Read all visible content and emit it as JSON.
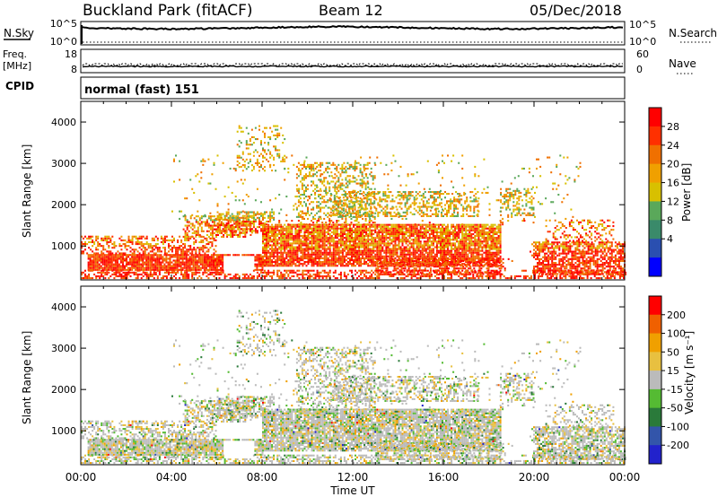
{
  "header": {
    "station": "Buckland Park (fitACF)",
    "beam": "Beam 12",
    "date": "05/Dec/2018"
  },
  "panels": {
    "nsky": {
      "label": "N.Sky",
      "left_ticks": [
        "10^5",
        "10^0"
      ],
      "right_ticks": [
        "10^5",
        "10^0"
      ],
      "right_label": "N.Search"
    },
    "freq": {
      "label_line1": "Freq.",
      "label_line2": "[MHz]",
      "left_ticks": [
        "18",
        "8"
      ],
      "right_ticks": [
        "60",
        "0"
      ],
      "right_label": "Nave"
    },
    "cpid": {
      "label": "CPID",
      "text": "normal (fast) 151"
    }
  },
  "colors": {
    "power_scale": [
      "#0000ff",
      "#2a4fb0",
      "#3a8a6a",
      "#5aa85a",
      "#d8c000",
      "#f0a000",
      "#f07000",
      "#ff3000",
      "#ff0000"
    ],
    "velocity_scale": [
      "#2222cc",
      "#3355aa",
      "#2a7a3a",
      "#55bb33",
      "#bbbbbb",
      "#e8c040",
      "#f0a000",
      "#f06000",
      "#ff0000"
    ]
  },
  "chart_data": [
    {
      "type": "heatmap",
      "name": "power",
      "ylabel": "Slant Range [km]",
      "yticks": [
        "1000",
        "2000",
        "3000",
        "4000"
      ],
      "xticks": [
        "00:00",
        "04:00",
        "08:00",
        "12:00",
        "16:00",
        "20:00",
        "00:00"
      ],
      "colorbar_label": "Power [dB]",
      "colorbar_ticks": [
        "4",
        "8",
        "12",
        "16",
        "20",
        "24",
        "28"
      ],
      "ylim": [
        180,
        4500
      ],
      "xlim": [
        0,
        24
      ]
    },
    {
      "type": "heatmap",
      "name": "velocity",
      "ylabel": "Slant Range [km]",
      "yticks": [
        "1000",
        "2000",
        "3000",
        "4000"
      ],
      "xticks": [
        "00:00",
        "04:00",
        "08:00",
        "12:00",
        "16:00",
        "20:00",
        "00:00"
      ],
      "xlabel": "Time UT",
      "colorbar_label": "Velocity [m s⁻¹]",
      "colorbar_ticks": [
        "200",
        "100",
        "50",
        "15",
        "-15",
        "-50",
        "-100",
        "-200"
      ],
      "ylim": [
        180,
        4500
      ],
      "xlim": [
        0,
        24
      ]
    }
  ]
}
